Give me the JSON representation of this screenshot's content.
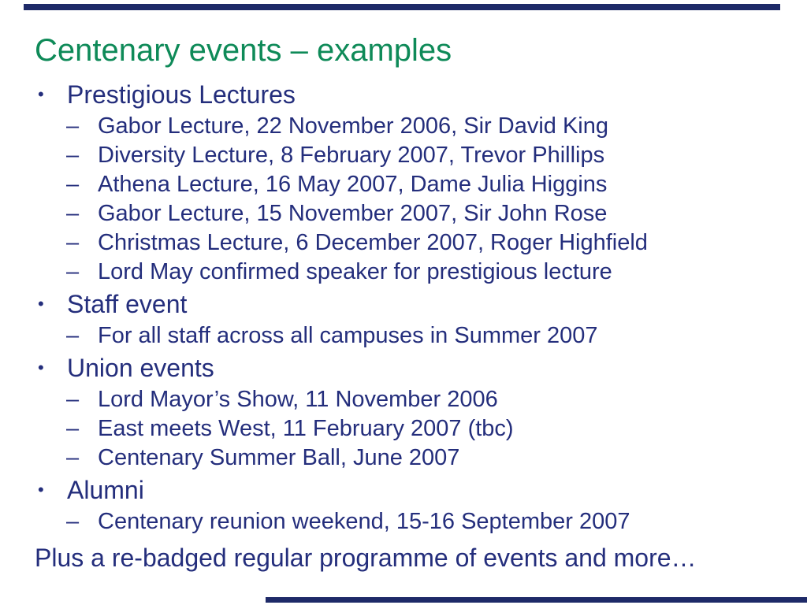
{
  "slide": {
    "title": "Centenary events – examples",
    "bullet_glyph": "•",
    "dash_glyph": "–",
    "sections": [
      {
        "label": "Prestigious Lectures",
        "items": [
          "Gabor Lecture, 22 November 2006, Sir David King",
          "Diversity Lecture, 8 February 2007, Trevor Phillips",
          "Athena Lecture, 16 May 2007, Dame Julia Higgins",
          "Gabor Lecture, 15 November 2007, Sir John Rose",
          "Christmas Lecture, 6 December 2007, Roger Highfield",
          "Lord May confirmed speaker for prestigious lecture"
        ]
      },
      {
        "label": "Staff event",
        "items": [
          "For all staff across all campuses in Summer 2007"
        ]
      },
      {
        "label": "Union events",
        "items": [
          "Lord Mayor’s Show, 11 November 2006",
          "East meets West, 11 February 2007 (tbc)",
          "Centenary Summer Ball, June 2007"
        ]
      },
      {
        "label": "Alumni",
        "items": [
          "Centenary reunion weekend, 15-16 September 2007"
        ]
      }
    ],
    "closing": "Plus a re-badged regular programme of events and more…",
    "colors": {
      "title_green": "#0e8a58",
      "body_navy": "#242e7c",
      "bar_navy": "#1e2a68",
      "background": "#ffffff"
    }
  }
}
